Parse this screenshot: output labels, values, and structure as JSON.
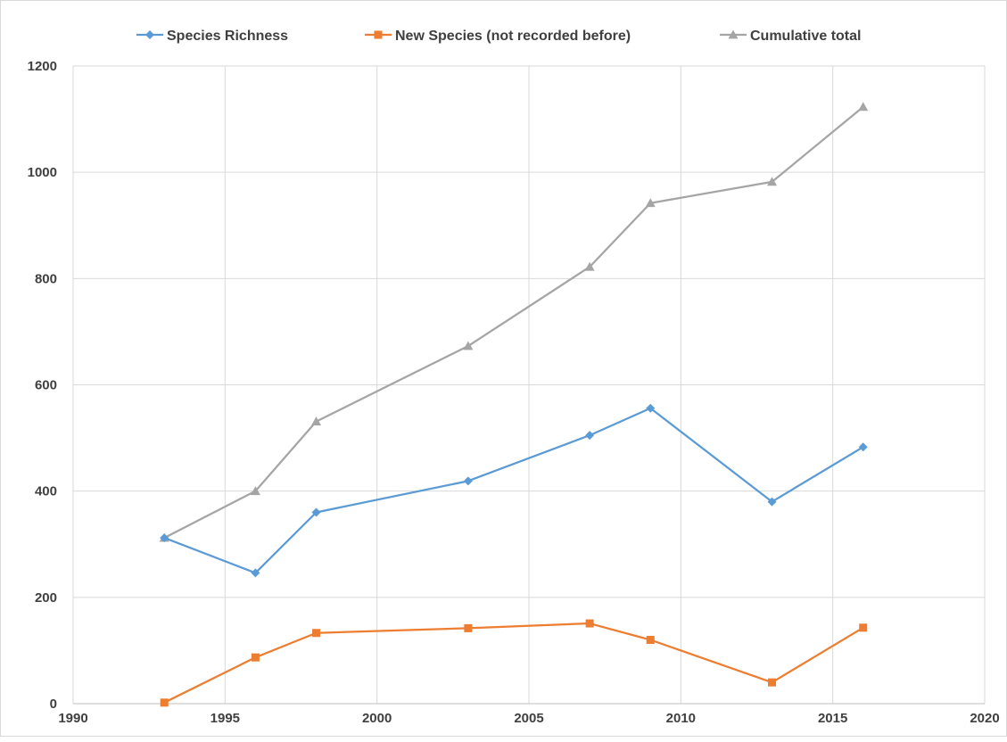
{
  "chart_data": {
    "type": "line",
    "title": "",
    "xlabel": "",
    "ylabel": "",
    "xlim": [
      1990,
      2020
    ],
    "ylim": [
      0,
      1200
    ],
    "x_ticks": [
      1990,
      1995,
      2000,
      2005,
      2010,
      2015,
      2020
    ],
    "y_ticks": [
      0,
      200,
      400,
      600,
      800,
      1000,
      1200
    ],
    "grid": true,
    "legend_position": "top",
    "x": [
      1993,
      1996,
      1998,
      2003,
      2007,
      2009,
      2013,
      2016
    ],
    "series": [
      {
        "name": "Species Richness",
        "color": "#5b9bd5",
        "marker": "diamond",
        "values": [
          312,
          246,
          360,
          419,
          505,
          556,
          380,
          483
        ]
      },
      {
        "name": "New Species (not recorded before)",
        "color": "#ed7d31",
        "marker": "square",
        "values": [
          2,
          87,
          133,
          142,
          151,
          120,
          40,
          143
        ]
      },
      {
        "name": "Cumulative total",
        "color": "#a5a5a5",
        "marker": "triangle",
        "values": [
          312,
          400,
          531,
          673,
          822,
          942,
          982,
          1123
        ]
      }
    ]
  }
}
